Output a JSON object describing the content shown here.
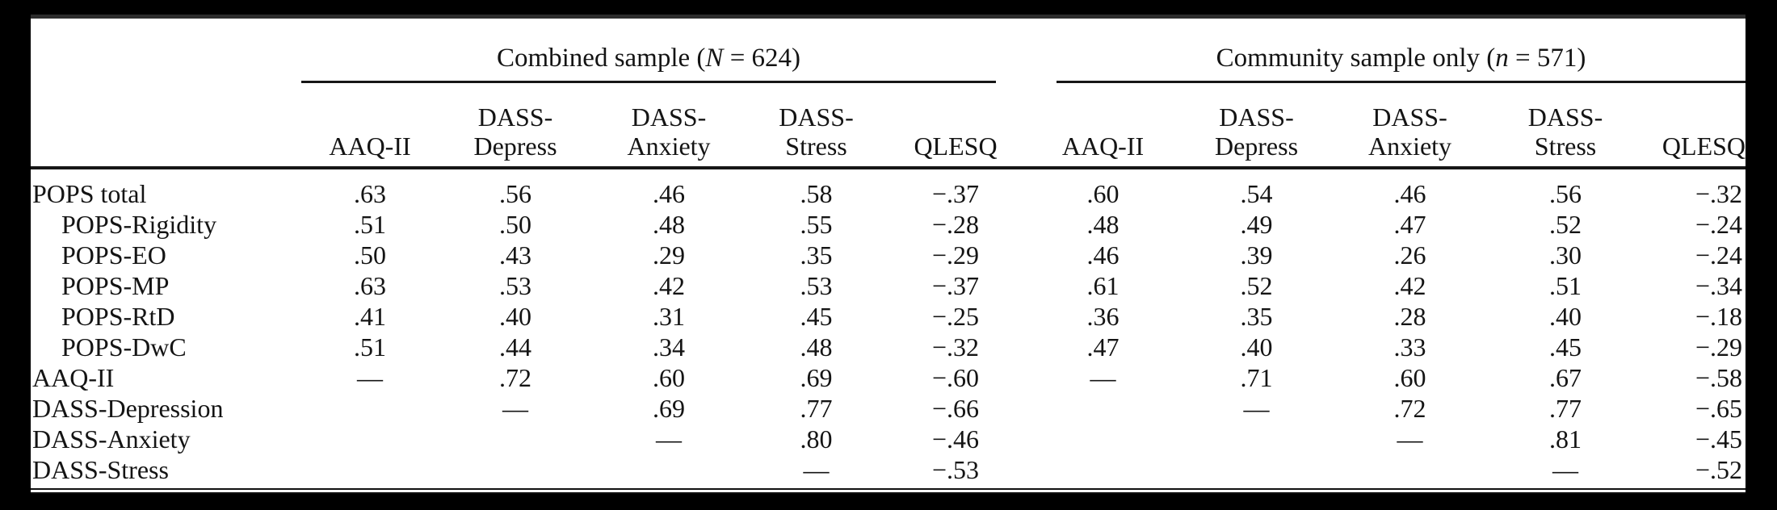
{
  "page": {
    "background_color": "#000000",
    "card_color": "#ffffff",
    "text_color": "#141414",
    "rule_color": "#161616"
  },
  "table": {
    "groups": [
      {
        "label_pre": "Combined sample (",
        "label_var": "N",
        "label_post": " = 624)"
      },
      {
        "label_pre": "Community sample only (",
        "label_var": "n",
        "label_post": " = 571)"
      }
    ],
    "column_headers": [
      {
        "top": "",
        "bottom": "AAQ-II"
      },
      {
        "top": "DASS-",
        "bottom": "Depress"
      },
      {
        "top": "DASS-",
        "bottom": "Anxiety"
      },
      {
        "top": "DASS-",
        "bottom": "Stress"
      },
      {
        "top": "",
        "bottom": "QLESQ"
      }
    ],
    "rows": [
      {
        "label": "POPS total",
        "values": [
          ".63",
          ".56",
          ".46",
          ".58",
          "−.37",
          ".60",
          ".54",
          ".46",
          ".56",
          "−.32"
        ]
      },
      {
        "label": "POPS-Rigidity",
        "values": [
          ".51",
          ".50",
          ".48",
          ".55",
          "−.28",
          ".48",
          ".49",
          ".47",
          ".52",
          "−.24"
        ]
      },
      {
        "label": "POPS-EO",
        "values": [
          ".50",
          ".43",
          ".29",
          ".35",
          "−.29",
          ".46",
          ".39",
          ".26",
          ".30",
          "−.24"
        ]
      },
      {
        "label": "POPS-MP",
        "values": [
          ".63",
          ".53",
          ".42",
          ".53",
          "−.37",
          ".61",
          ".52",
          ".42",
          ".51",
          "−.34"
        ]
      },
      {
        "label": "POPS-RtD",
        "values": [
          ".41",
          ".40",
          ".31",
          ".45",
          "−.25",
          ".36",
          ".35",
          ".28",
          ".40",
          "−.18"
        ]
      },
      {
        "label": "POPS-DwC",
        "values": [
          ".51",
          ".44",
          ".34",
          ".48",
          "−.32",
          ".47",
          ".40",
          ".33",
          ".45",
          "−.29"
        ]
      },
      {
        "label": "AAQ-II",
        "values": [
          "—",
          ".72",
          ".60",
          ".69",
          "−.60",
          "—",
          ".71",
          ".60",
          ".67",
          "−.58"
        ]
      },
      {
        "label": "DASS-Depression",
        "values": [
          "",
          "—",
          ".69",
          ".77",
          "−.66",
          "",
          "—",
          ".72",
          ".77",
          "−.65"
        ]
      },
      {
        "label": "DASS-Anxiety",
        "values": [
          "",
          "",
          "—",
          ".80",
          "−.46",
          "",
          "",
          "—",
          ".81",
          "−.45"
        ]
      },
      {
        "label": "DASS-Stress",
        "values": [
          "",
          "",
          "",
          "—",
          "−.53",
          "",
          "",
          "",
          "—",
          "−.52"
        ]
      }
    ]
  }
}
